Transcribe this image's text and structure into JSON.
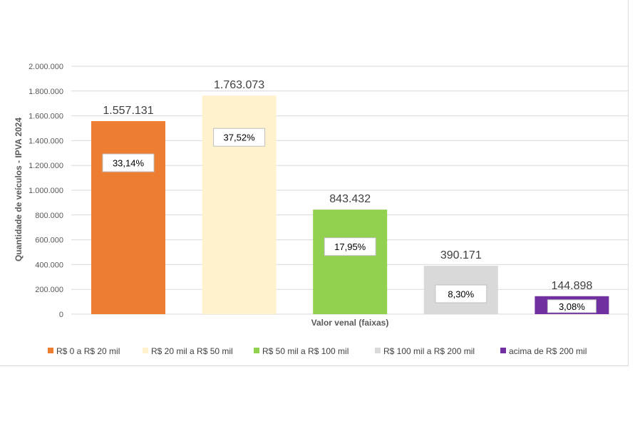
{
  "chart_data": {
    "type": "bar",
    "xlabel": "Valor venal (faixas)",
    "ylabel": "Quantidade de veículos - IPVA 2024",
    "ylim": [
      0,
      2000000
    ],
    "yticks": [
      0,
      200000,
      400000,
      600000,
      800000,
      1000000,
      1200000,
      1400000,
      1600000,
      1800000,
      2000000
    ],
    "ytick_labels": [
      "0",
      "200.000",
      "400.000",
      "600.000",
      "800.000",
      "1.000.000",
      "1.200.000",
      "1.400.000",
      "1.600.000",
      "1.800.000",
      "2.000.000"
    ],
    "grid": true,
    "legend_position": "bottom",
    "categories": [
      "R$ 0 a R$ 20 mil",
      "R$ 20 mil a R$ 50 mil",
      "R$ 50 mil a R$ 100 mil",
      "R$ 100 mil a R$ 200 mil",
      "acima de R$ 200 mil"
    ],
    "values": [
      1557131,
      1763073,
      843432,
      390171,
      144898
    ],
    "value_labels": [
      "1.557.131",
      "1.763.073",
      "843.432",
      "390.171",
      "144.898"
    ],
    "percent_labels": [
      "33,14%",
      "37,52%",
      "17,95%",
      "8,30%",
      "3,08%"
    ],
    "colors": [
      "#ED7D31",
      "#FFF2CC",
      "#92D050",
      "#D9D9D9",
      "#7030A0"
    ]
  }
}
